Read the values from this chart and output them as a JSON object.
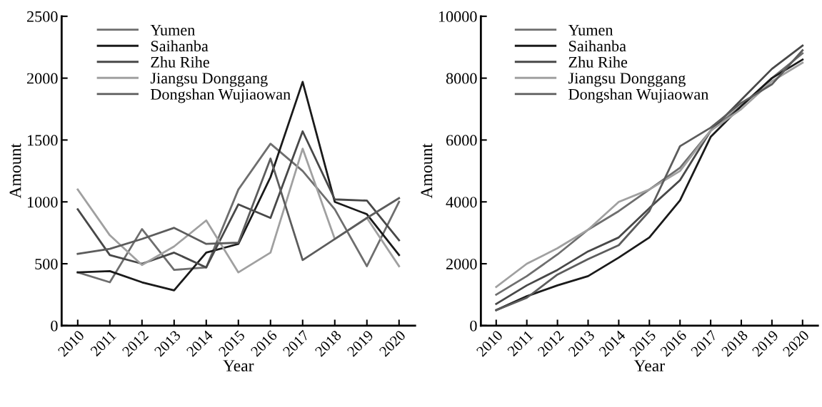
{
  "chart_data": [
    {
      "type": "line",
      "xlabel": "Year",
      "ylabel": "Amount",
      "categories": [
        "2010",
        "2011",
        "2012",
        "2013",
        "2014",
        "2015",
        "2016",
        "2017",
        "2018",
        "2019",
        "2020"
      ],
      "ylim": [
        0,
        2500
      ],
      "yticks": [
        0,
        500,
        1000,
        1500,
        2000,
        2500
      ],
      "grid": false,
      "legend": "top left",
      "series": [
        {
          "name": "Yumen",
          "color": "#6e6e6e",
          "values": [
            430,
            350,
            780,
            450,
            470,
            1100,
            1470,
            1250,
            940,
            480,
            1000
          ]
        },
        {
          "name": "Saihanba",
          "color": "#1a1a1a",
          "values": [
            430,
            440,
            350,
            285,
            590,
            660,
            1200,
            1970,
            1000,
            900,
            570
          ]
        },
        {
          "name": "Zhu Rihe",
          "color": "#484848",
          "values": [
            940,
            570,
            500,
            590,
            470,
            980,
            870,
            1570,
            1020,
            1010,
            690
          ]
        },
        {
          "name": "Jiangsu Donggang",
          "color": "#a0a0a0",
          "values": [
            1100,
            730,
            490,
            640,
            850,
            430,
            590,
            1430,
            700,
            870,
            480
          ]
        },
        {
          "name": "Dongshan Wujiaowan",
          "color": "#5c5c5c",
          "values": [
            580,
            620,
            700,
            790,
            660,
            670,
            1350,
            530,
            700,
            870,
            1030
          ]
        }
      ]
    },
    {
      "type": "line",
      "xlabel": "Year",
      "ylabel": "Amount",
      "categories": [
        "2010",
        "2011",
        "2012",
        "2013",
        "2014",
        "2015",
        "2016",
        "2017",
        "2018",
        "2019",
        "2020"
      ],
      "ylim": [
        0,
        10000
      ],
      "yticks": [
        0,
        2000,
        4000,
        6000,
        8000,
        10000
      ],
      "grid": false,
      "legend": "top left",
      "series": [
        {
          "name": "Yumen",
          "color": "#6e6e6e",
          "values": [
            1000,
            1600,
            2300,
            3100,
            3700,
            4400,
            5100,
            6300,
            7100,
            8000,
            8800
          ]
        },
        {
          "name": "Saihanba",
          "color": "#1a1a1a",
          "values": [
            500,
            950,
            1300,
            1600,
            2200,
            2850,
            4050,
            6100,
            7100,
            8000,
            8600
          ]
        },
        {
          "name": "Zhu Rihe",
          "color": "#484848",
          "values": [
            700,
            1300,
            1800,
            2400,
            2850,
            3800,
            4700,
            6300,
            7300,
            8300,
            9050
          ]
        },
        {
          "name": "Jiangsu Donggang",
          "color": "#a0a0a0",
          "values": [
            1250,
            2000,
            2500,
            3100,
            4000,
            4400,
            5000,
            6300,
            7000,
            7900,
            8500
          ]
        },
        {
          "name": "Dongshan Wujiaowan",
          "color": "#5c5c5c",
          "values": [
            500,
            900,
            1650,
            2150,
            2600,
            3700,
            5800,
            6400,
            7200,
            7800,
            8900
          ]
        }
      ]
    }
  ]
}
